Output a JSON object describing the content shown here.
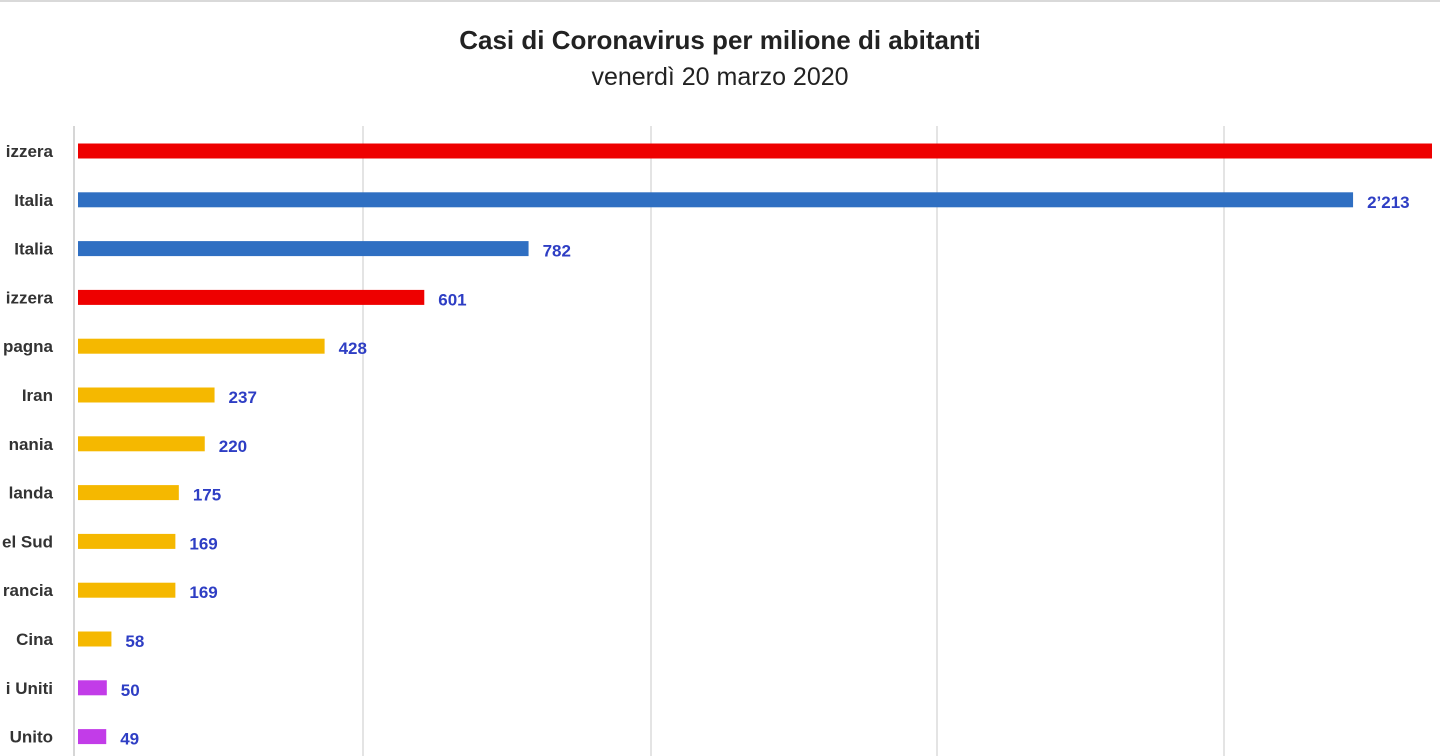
{
  "chart_data": {
    "type": "bar",
    "orientation": "horizontal",
    "title": "Casi di Coronavirus per milione di abitanti",
    "subtitle": "venerdì 20 marzo 2020",
    "categories": [
      "izzera",
      "Italia",
      "Italia",
      "izzera",
      "pagna",
      "Iran",
      "nania",
      "landa",
      "el Sud",
      "rancia",
      "Cina",
      "i Uniti",
      "Unito"
    ],
    "values": [
      2350,
      2213,
      782,
      601,
      428,
      237,
      220,
      175,
      169,
      169,
      58,
      50,
      49
    ],
    "value_labels": [
      "",
      "2’213",
      "782",
      "601",
      "428",
      "237",
      "220",
      "175",
      "169",
      "169",
      "58",
      "50",
      "49"
    ],
    "colors": [
      "#ee0000",
      "#2f6fc2",
      "#2f6fc2",
      "#ee0000",
      "#f5b800",
      "#f5b800",
      "#f5b800",
      "#f5b800",
      "#f5b800",
      "#f5b800",
      "#f5b800",
      "#c23ce8",
      "#c23ce8"
    ],
    "xlim": [
      0,
      2350
    ],
    "grid": true,
    "legend": "none"
  }
}
